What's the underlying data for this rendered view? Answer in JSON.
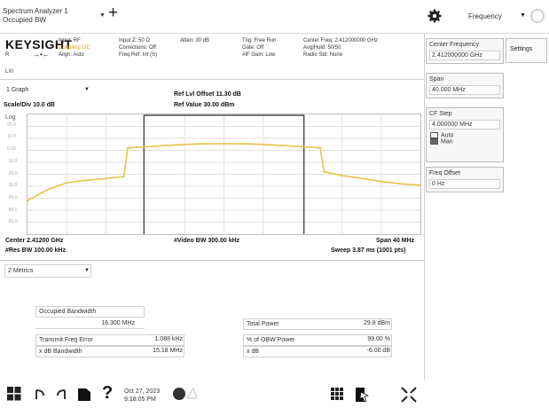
{
  "tabbar": {
    "title_line1": "Spectrum Analyzer 1",
    "title_line2": "Occupied BW",
    "add_label": "+",
    "mode_label": "Frequency"
  },
  "header": {
    "brand": "KEYSIGHT",
    "status_r": "R",
    "status_lxi": "LXI",
    "col1": [
      "Input: RF",
      "Coupling: DC",
      "Align: Auto"
    ],
    "col2": [
      "Input Z: 50 Ω",
      "Corrections: Off",
      "Freq Ref: Int (S)"
    ],
    "col3": [
      "Atten: 30 dB"
    ],
    "col4": [
      "Trig: Free Run",
      "Gate: Off",
      "#IF Gain: Low"
    ],
    "col5": [
      "Center Freq: 2.412000000 GHz",
      "Avg|Hold: 50/50",
      "Radio Std: None"
    ]
  },
  "graph": {
    "view_select": "1 Graph",
    "scale_div": "Scale/Div 10.0 dB",
    "ref_offset": "Ref Lvl Offset 11.30 dB",
    "ref_value": "Ref Value 30.00 dBm",
    "log_label": "Log",
    "ytick_labels": [
      "20.0",
      "10.0",
      "0.00",
      "-10.0",
      "-20.0",
      "-30.0",
      "-40.0",
      "-50.0",
      "-60.0"
    ],
    "center": "Center 2.41200 GHz",
    "res_bw": "#Res BW 100.00 kHz",
    "video_bw": "#Video BW 300.00 kHz",
    "span": "Span 40 MHz",
    "sweep": "Sweep 3.87 ms (1001 pts)"
  },
  "chart_data": {
    "type": "line",
    "x_unit": "MHz offset from center",
    "xlim": [
      -20,
      20
    ],
    "ylim": [
      -70,
      30
    ],
    "series": [
      {
        "x": [
          -20,
          -18,
          -16,
          -14,
          -12,
          -10.2,
          -9.8,
          -8,
          -6,
          -4,
          -2,
          0,
          2,
          4,
          6,
          8,
          9.8,
          10.2,
          12,
          14,
          16,
          18,
          20
        ],
        "y": [
          -42,
          -33,
          -27,
          -25,
          -23.5,
          -22,
          2,
          3,
          4,
          5,
          5.5,
          5.5,
          5.5,
          5,
          4,
          3,
          2,
          -18,
          -21,
          -23.5,
          -26,
          -28,
          -29
        ]
      }
    ],
    "obw_marker": [
      -8.15,
      8.15
    ],
    "colors": {
      "trace": "#e8c34a",
      "marker": "#333333"
    }
  },
  "metrics": {
    "view_select": "2 Metrics",
    "occupied_bw_label": "Occupied Bandwidth",
    "occupied_bw_value": "16.300 MHz",
    "total_power_label": "Total Power",
    "total_power_value": "29.8 dBm",
    "tx_freq_error_label": "Transmit Freq Error",
    "tx_freq_error_value": "1.088 kHz",
    "obw_power_label": "% of OBW Power",
    "obw_power_value": "99.00 %",
    "xdb_bw_label": "x dB Bandwidth",
    "xdb_bw_value": "15.18 MHz",
    "xdb_label": "x dB",
    "xdb_value": "-6.00 dB"
  },
  "rightpanel": {
    "center_freq_label": "Center Frequency",
    "center_freq_value": "2.412000000 GHz",
    "settings_tab": "Settings",
    "span_label": "Span",
    "span_value": "40.000 MHz",
    "cf_step_label": "CF Step",
    "cf_step_value": "4.000000 MHz",
    "auto_label": "Auto",
    "man_label": "Man",
    "freq_offset_label": "Freq Offset",
    "freq_offset_value": "0 Hz"
  },
  "bottombar": {
    "date": "Oct 27, 2023",
    "time": "9:18:05 PM"
  }
}
